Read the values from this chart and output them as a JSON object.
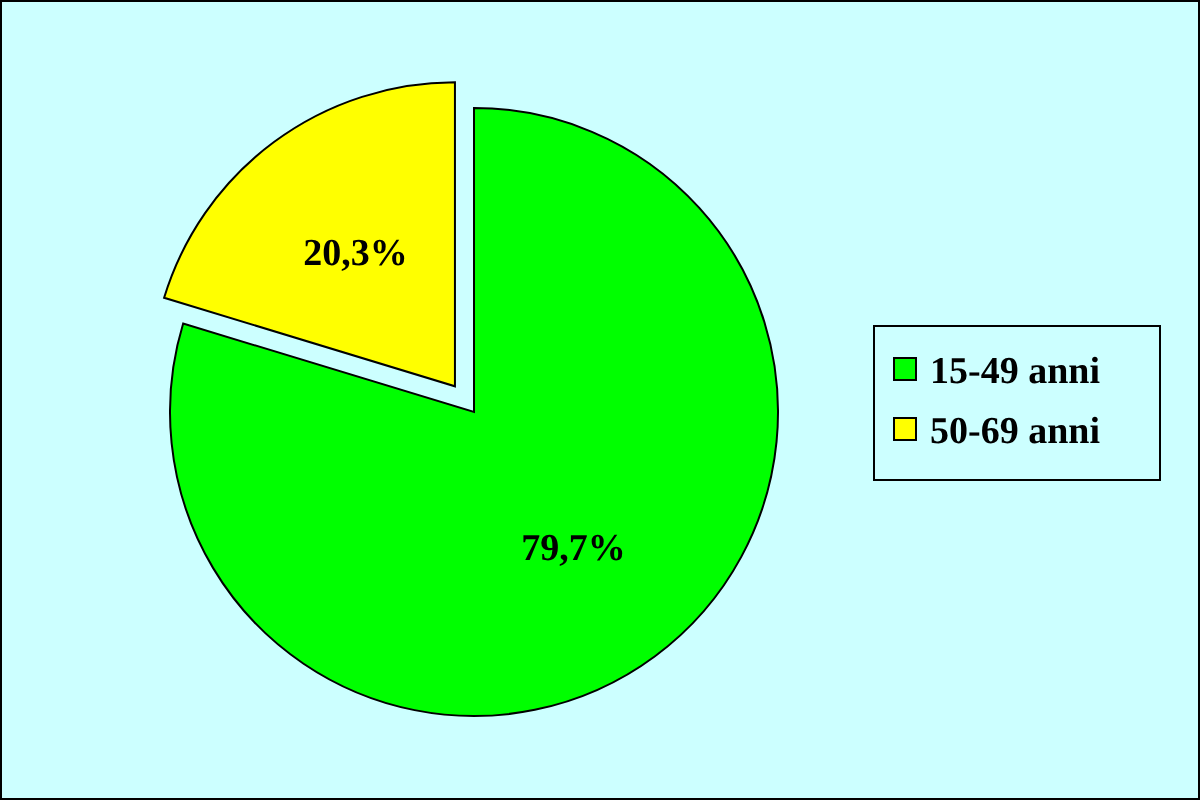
{
  "chart_data": {
    "type": "pie",
    "categories": [
      "15-49 anni",
      "50-69 anni"
    ],
    "values": [
      79.7,
      20.3
    ],
    "colors": [
      "#00ff00",
      "#ffff00"
    ],
    "value_labels": [
      "79,7%",
      "20,3%"
    ],
    "legend": "right"
  }
}
